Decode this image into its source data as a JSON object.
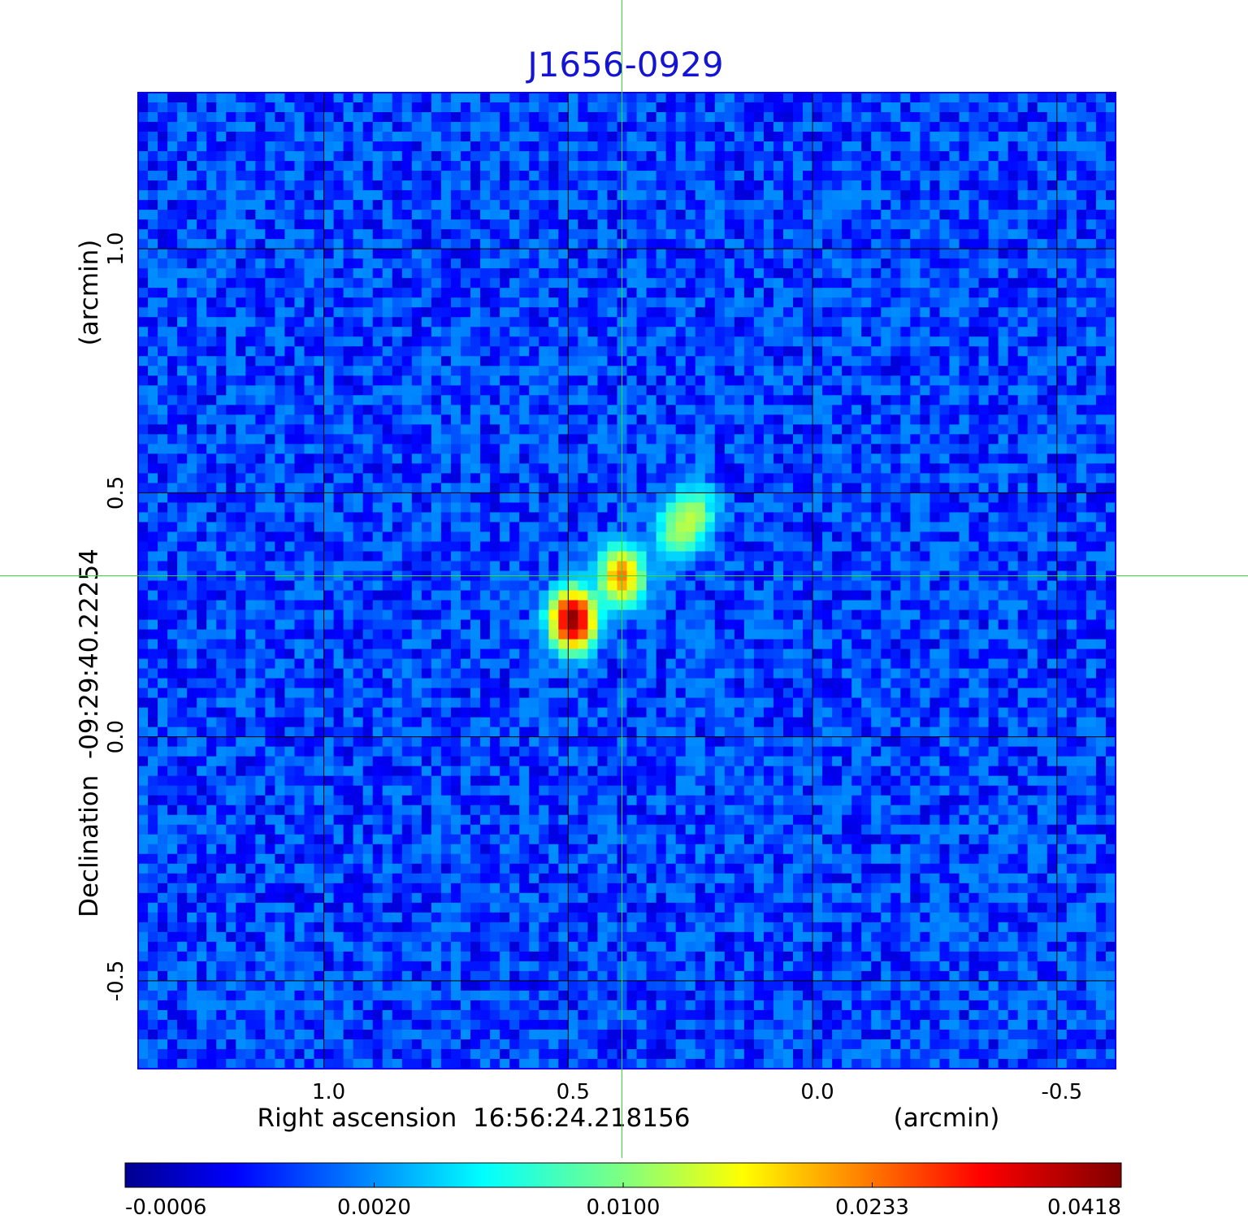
{
  "chart_data": {
    "type": "heatmap",
    "title": "J1656-0929",
    "xlabel": "Right ascension  16:56:24.218156",
    "xunit": "(arcmin)",
    "ylabel": "Declination  -09:29:40.22254",
    "yunit": "(arcmin)",
    "xlim": [
      1.38,
      -0.62
    ],
    "ylim": [
      -0.68,
      1.32
    ],
    "x_ticks": [
      1.0,
      0.5,
      0.0,
      -0.5
    ],
    "x_tick_labels": [
      "1.0",
      "0.5",
      "0.0",
      "-0.5"
    ],
    "y_ticks": [
      1.0,
      0.5,
      0.0,
      -0.5
    ],
    "y_tick_labels": [
      "1.0",
      "0.5",
      "0.0",
      "-0.5"
    ],
    "grid": true,
    "crosshair": {
      "x": 0.39,
      "y": 0.33
    },
    "colormap": "jet",
    "colorbar": {
      "ticks": [
        -0.0006,
        0.002,
        0.01,
        0.0233,
        0.0418
      ],
      "tick_labels": [
        "-0.0006",
        "0.0020",
        "0.0100",
        "0.0233",
        "0.0418"
      ]
    },
    "background_level": 0.0014,
    "sources": [
      {
        "x": 0.49,
        "y": 0.24,
        "peak": 0.0418
      },
      {
        "x": 0.39,
        "y": 0.33,
        "peak": 0.0233
      },
      {
        "x": 0.28,
        "y": 0.42,
        "peak": 0.01
      },
      {
        "x": 0.24,
        "y": 0.46,
        "peak": 0.01
      }
    ],
    "colors": {
      "title": "#1414d2",
      "crosshair": "#33dd33",
      "grid": "#000000",
      "frame": "#0000ff"
    }
  }
}
